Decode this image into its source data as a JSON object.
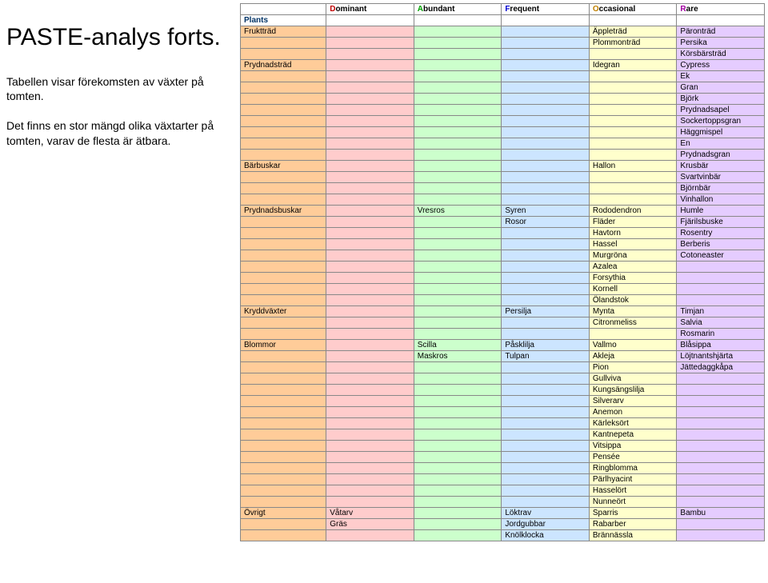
{
  "title": "PASTE-analys forts.",
  "paragraphs": [
    "Tabellen visar förekomsten av växter på tomten.",
    "Det finns en stor mängd olika växtarter på tomten, varav de flesta är ätbara."
  ],
  "columns": [
    "",
    "Dominant",
    "Abundant",
    "Frequent",
    "Occasional",
    "Rare"
  ],
  "colWidths": [
    "92px",
    "94px",
    "94px",
    "94px",
    "94px",
    "94px"
  ],
  "colors": {
    "category": "#ffcc99",
    "dominant": "#ffcccc",
    "abundant": "#ccffcc",
    "frequent": "#cce5ff",
    "occasional": "#ffffcc",
    "rare": "#e5ccff"
  },
  "groupLabel": "Plants",
  "rows": [
    [
      "Fruktträd",
      "",
      "",
      "",
      "Äppleträd",
      "Päronträd"
    ],
    [
      "",
      "",
      "",
      "",
      "Plommonträd",
      "Persika"
    ],
    [
      "",
      "",
      "",
      "",
      "",
      "Körsbärsträd"
    ],
    [
      "Prydnadsträd",
      "",
      "",
      "",
      "Idegran",
      "Cypress"
    ],
    [
      "",
      "",
      "",
      "",
      "",
      "Ek"
    ],
    [
      "",
      "",
      "",
      "",
      "",
      "Gran"
    ],
    [
      "",
      "",
      "",
      "",
      "",
      "Björk"
    ],
    [
      "",
      "",
      "",
      "",
      "",
      "Prydnadsapel"
    ],
    [
      "",
      "",
      "",
      "",
      "",
      "Sockertoppsgran"
    ],
    [
      "",
      "",
      "",
      "",
      "",
      "Häggmispel"
    ],
    [
      "",
      "",
      "",
      "",
      "",
      "En"
    ],
    [
      "",
      "",
      "",
      "",
      "",
      "Prydnadsgran"
    ],
    [
      "Bärbuskar",
      "",
      "",
      "",
      "Hallon",
      "Krusbär"
    ],
    [
      "",
      "",
      "",
      "",
      "",
      "Svartvinbär"
    ],
    [
      "",
      "",
      "",
      "",
      "",
      "Björnbär"
    ],
    [
      "",
      "",
      "",
      "",
      "",
      "Vinhallon"
    ],
    [
      "Prydnadsbuskar",
      "",
      "Vresros",
      "Syren",
      "Rododendron",
      "Humle"
    ],
    [
      "",
      "",
      "",
      "Rosor",
      "Fläder",
      "Fjärilsbuske"
    ],
    [
      "",
      "",
      "",
      "",
      "Havtorn",
      "Rosentry"
    ],
    [
      "",
      "",
      "",
      "",
      "Hassel",
      "Berberis"
    ],
    [
      "",
      "",
      "",
      "",
      "Murgröna",
      "Cotoneaster"
    ],
    [
      "",
      "",
      "",
      "",
      "Azalea",
      ""
    ],
    [
      "",
      "",
      "",
      "",
      "Forsythia",
      ""
    ],
    [
      "",
      "",
      "",
      "",
      "Kornell",
      ""
    ],
    [
      "",
      "",
      "",
      "",
      "Ölandstok",
      ""
    ],
    [
      "Kryddväxter",
      "",
      "",
      "Persilja",
      "Mynta",
      "Timjan"
    ],
    [
      "",
      "",
      "",
      "",
      "Citronmeliss",
      "Salvia"
    ],
    [
      "",
      "",
      "",
      "",
      "",
      "Rosmarin"
    ],
    [
      "Blommor",
      "",
      "Scilla",
      "Påsklilja",
      "Vallmo",
      "Blåsippa"
    ],
    [
      "",
      "",
      "Maskros",
      "Tulpan",
      "Akleja",
      "Löjtnantshjärta"
    ],
    [
      "",
      "",
      "",
      "",
      "Pion",
      "Jättedaggkåpa"
    ],
    [
      "",
      "",
      "",
      "",
      "Gullviva",
      ""
    ],
    [
      "",
      "",
      "",
      "",
      "Kungsängslilja",
      ""
    ],
    [
      "",
      "",
      "",
      "",
      "Silverarv",
      ""
    ],
    [
      "",
      "",
      "",
      "",
      "Anemon",
      ""
    ],
    [
      "",
      "",
      "",
      "",
      "Kärleksört",
      ""
    ],
    [
      "",
      "",
      "",
      "",
      "Kantnepeta",
      ""
    ],
    [
      "",
      "",
      "",
      "",
      "Vitsippa",
      ""
    ],
    [
      "",
      "",
      "",
      "",
      "Pensée",
      ""
    ],
    [
      "",
      "",
      "",
      "",
      "Ringblomma",
      ""
    ],
    [
      "",
      "",
      "",
      "",
      "Pärlhyacint",
      ""
    ],
    [
      "",
      "",
      "",
      "",
      "Hasselört",
      ""
    ],
    [
      "",
      "",
      "",
      "",
      "Nunneört",
      ""
    ],
    [
      "Övrigt",
      "Våtarv",
      "",
      "Löktrav",
      "Sparris",
      "Bambu"
    ],
    [
      "",
      "Gräs",
      "",
      "Jordgubbar",
      "Rabarber",
      ""
    ],
    [
      "",
      "",
      "",
      "Knölklocka",
      "Brännässla",
      ""
    ]
  ]
}
